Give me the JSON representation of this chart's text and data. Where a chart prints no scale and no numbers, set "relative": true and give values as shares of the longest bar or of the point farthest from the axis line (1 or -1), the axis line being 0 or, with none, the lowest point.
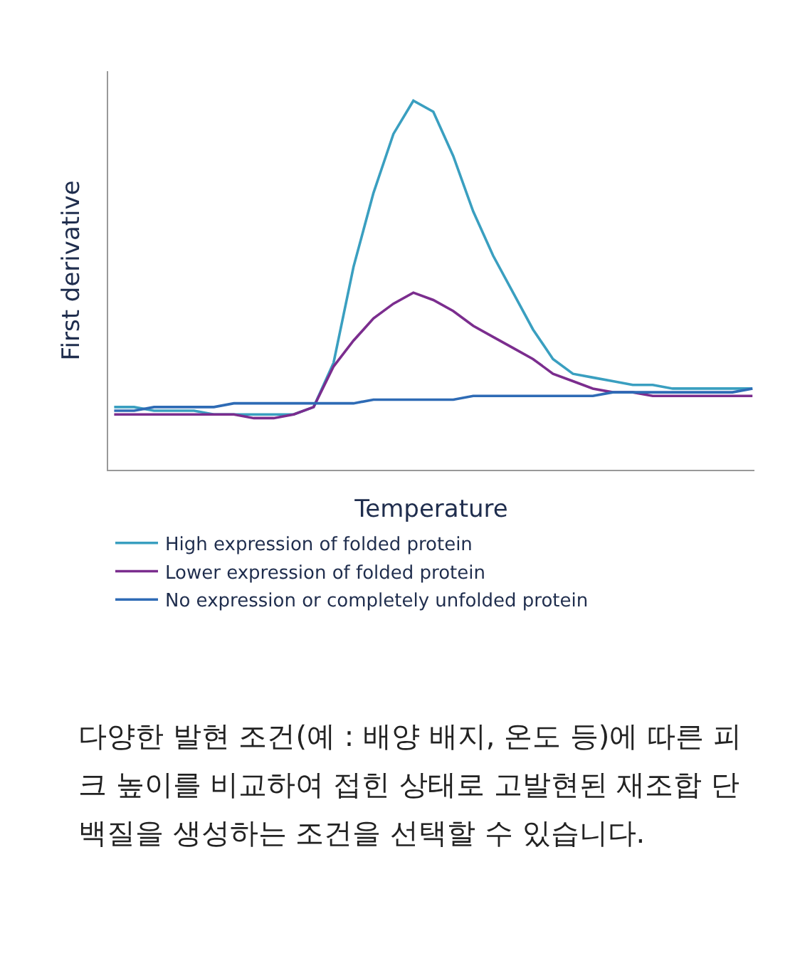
{
  "chart_data": {
    "type": "line",
    "relative": true,
    "xlabel": "Temperature",
    "ylabel": "First derivative",
    "legend": "bottom",
    "categories": [
      null,
      null,
      null,
      null,
      null,
      null,
      null,
      null,
      null,
      null,
      null,
      null,
      null,
      null,
      null,
      null,
      null,
      null,
      null,
      null,
      null,
      null,
      null,
      null,
      null,
      null,
      null,
      null,
      null,
      null,
      null,
      null,
      null
    ],
    "series": [
      {
        "name": "High expression of folded protein",
        "color": "#3a9fc0",
        "values": [
          0.17,
          0.17,
          0.16,
          0.16,
          0.16,
          0.15,
          0.15,
          0.15,
          0.15,
          0.15,
          0.17,
          0.29,
          0.55,
          0.75,
          0.91,
          1.0,
          0.97,
          0.85,
          0.7,
          0.58,
          0.48,
          0.38,
          0.3,
          0.26,
          0.25,
          0.24,
          0.23,
          0.23,
          0.22,
          0.22,
          0.22,
          0.22,
          0.22
        ]
      },
      {
        "name": "Lower expression of folded protein",
        "color": "#7b2d8e",
        "values": [
          0.15,
          0.15,
          0.15,
          0.15,
          0.15,
          0.15,
          0.15,
          0.14,
          0.14,
          0.15,
          0.17,
          0.28,
          0.35,
          0.41,
          0.45,
          0.48,
          0.46,
          0.43,
          0.39,
          0.36,
          0.33,
          0.3,
          0.26,
          0.24,
          0.22,
          0.21,
          0.21,
          0.2,
          0.2,
          0.2,
          0.2,
          0.2,
          0.2
        ]
      },
      {
        "name": "No expression or completely unfolded protein",
        "color": "#2e6bb5",
        "values": [
          0.16,
          0.16,
          0.17,
          0.17,
          0.17,
          0.17,
          0.18,
          0.18,
          0.18,
          0.18,
          0.18,
          0.18,
          0.18,
          0.19,
          0.19,
          0.19,
          0.19,
          0.19,
          0.2,
          0.2,
          0.2,
          0.2,
          0.2,
          0.2,
          0.2,
          0.21,
          0.21,
          0.21,
          0.21,
          0.21,
          0.21,
          0.21,
          0.22
        ]
      }
    ],
    "annotations": [
      "다양한 발현 조건(예 : 배양 배지, 온도 등)에 따른 피크 높이를 비교하여 접힌 상태로 고발현된 재조합 단백질을 생성하는 조건을 선택할 수 있습니다."
    ]
  }
}
